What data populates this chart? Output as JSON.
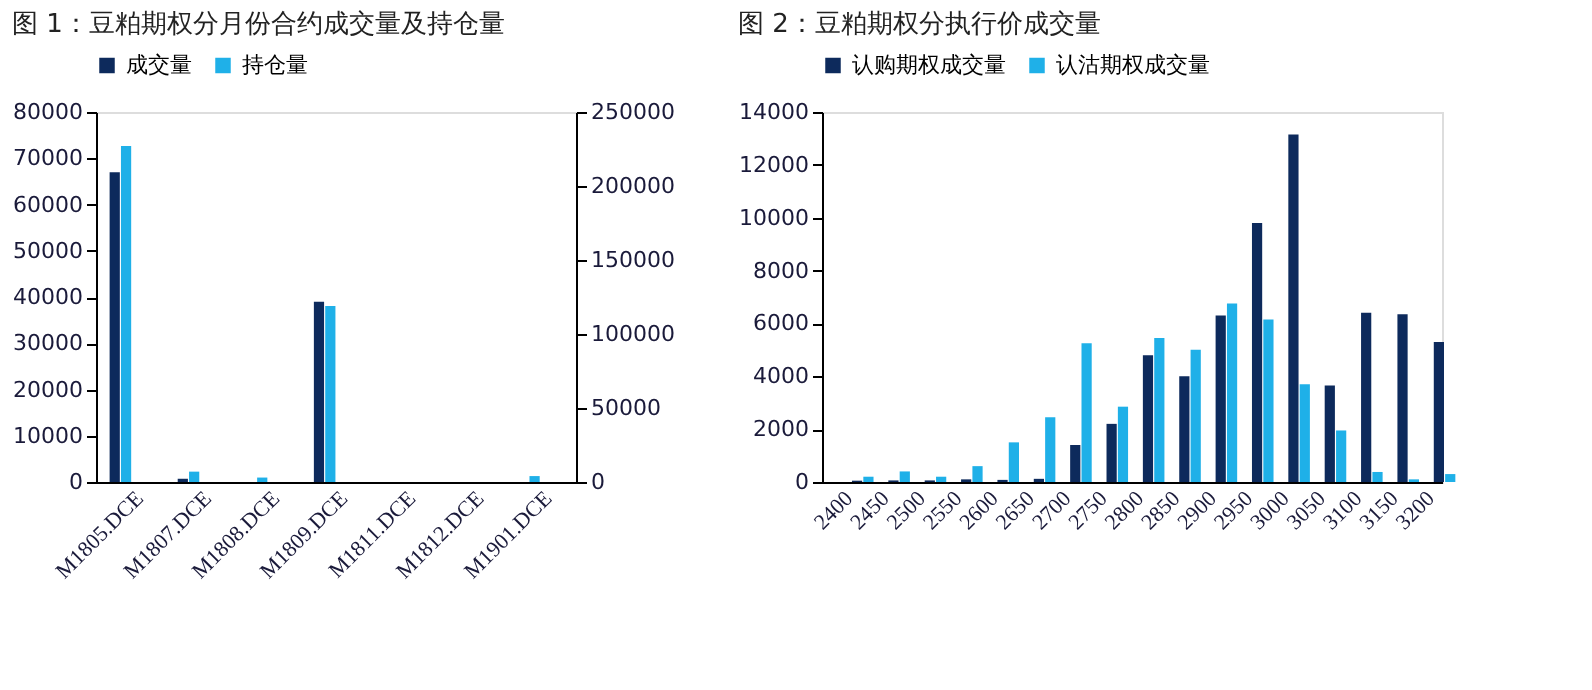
{
  "chart_data": [
    {
      "type": "bar",
      "title": "图 1：豆粕期权分月份合约成交量及持仓量",
      "categories": [
        "M1805.DCE",
        "M1807.DCE",
        "M1808.DCE",
        "M1809.DCE",
        "M1811.DCE",
        "M1812.DCE",
        "M1901.DCE"
      ],
      "series": [
        {
          "name": "成交量",
          "color": "#0d2a5c",
          "values": [
            67000,
            700,
            0,
            39000,
            0,
            0,
            0
          ]
        },
        {
          "name": "持仓量",
          "color": "#1fb0e8",
          "axis": "y2",
          "values": [
            227000,
            7000,
            3000,
            119000,
            0,
            0,
            4000
          ]
        }
      ],
      "ylim": [
        0,
        80000
      ],
      "yticks": [
        0,
        10000,
        20000,
        30000,
        40000,
        50000,
        60000,
        70000,
        80000
      ],
      "y2lim": [
        0,
        250000
      ],
      "y2ticks": [
        0,
        50000,
        100000,
        150000,
        200000,
        250000
      ],
      "grid": false,
      "legend": "top"
    },
    {
      "type": "bar",
      "title": "图 2：豆粕期权分执行价成交量",
      "categories": [
        "2400",
        "2450",
        "2500",
        "2550",
        "2600",
        "2650",
        "2700",
        "2750",
        "2800",
        "2850",
        "2900",
        "2950",
        "3000",
        "3050",
        "3100",
        "3150",
        "3200"
      ],
      "series": [
        {
          "name": "认购期权成交量",
          "color": "#0d2a5c",
          "values": [
            50,
            60,
            60,
            100,
            80,
            120,
            1400,
            2200,
            4800,
            4000,
            6300,
            9800,
            13150,
            3650,
            6400,
            6350,
            5300
          ]
        },
        {
          "name": "认沽期权成交量",
          "color": "#1fb0e8",
          "values": [
            200,
            400,
            200,
            600,
            1500,
            2450,
            5250,
            2850,
            5450,
            5000,
            6750,
            6150,
            3700,
            1950,
            380,
            100,
            300
          ]
        }
      ],
      "ylim": [
        0,
        14000
      ],
      "yticks": [
        0,
        2000,
        4000,
        6000,
        8000,
        10000,
        12000,
        14000
      ],
      "grid": false,
      "legend": "top"
    }
  ]
}
